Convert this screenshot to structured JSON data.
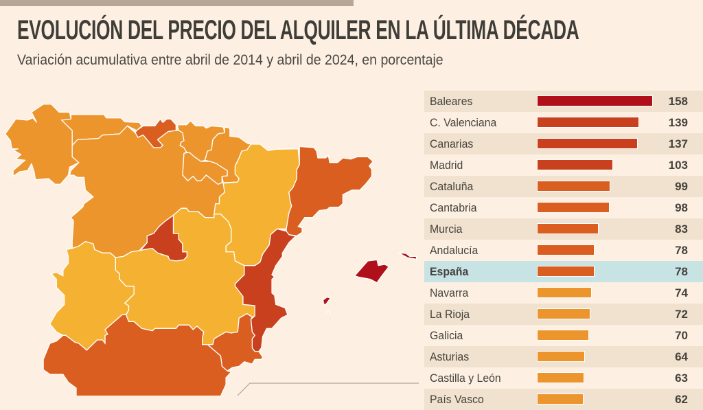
{
  "header": {
    "title": "EVOLUCIÓN DEL PRECIO DEL ALQUILER EN LA ÚLTIMA DÉCADA",
    "subtitle": "Variación acumulativa entre abril de 2014 y abril de 2024, en porcentaje"
  },
  "colors": {
    "tier_158": "#b0101a",
    "tier_100_140": "#c9401e",
    "tier_75_100": "#d95e20",
    "tier_60_75": "#ec952c",
    "tier_low": "#f5b232",
    "highlight_row": "#c8e3e4",
    "background": "#fdf0e2"
  },
  "chart_data": {
    "type": "bar",
    "orientation": "horizontal",
    "title": "EVOLUCIÓN DEL PRECIO DEL ALQUILER EN LA ÚLTIMA DÉCADA",
    "subtitle": "Variación acumulativa entre abril de 2014 y abril de 2024, en porcentaje",
    "highlighted": "España",
    "rows": [
      {
        "label": "Baleares",
        "value": 158,
        "color": "#b0101a"
      },
      {
        "label": "C. Valenciana",
        "value": 139,
        "color": "#c9401e"
      },
      {
        "label": "Canarias",
        "value": 137,
        "color": "#c9401e"
      },
      {
        "label": "Madrid",
        "value": 103,
        "color": "#c9401e"
      },
      {
        "label": "Cataluña",
        "value": 99,
        "color": "#d95e20"
      },
      {
        "label": "Cantabria",
        "value": 98,
        "color": "#d95e20"
      },
      {
        "label": "Murcia",
        "value": 83,
        "color": "#d95e20"
      },
      {
        "label": "Andalucía",
        "value": 78,
        "color": "#d95e20"
      },
      {
        "label": "España",
        "value": 78,
        "color": "#d95e20"
      },
      {
        "label": "Navarra",
        "value": 74,
        "color": "#ec952c"
      },
      {
        "label": "La Rioja",
        "value": 72,
        "color": "#ec952c"
      },
      {
        "label": "Galicia",
        "value": 70,
        "color": "#ec952c"
      },
      {
        "label": "Asturias",
        "value": 64,
        "color": "#ec952c"
      },
      {
        "label": "Castilla y León",
        "value": 63,
        "color": "#ec952c"
      },
      {
        "label": "País Vasco",
        "value": 62,
        "color": "#ec952c"
      }
    ]
  }
}
